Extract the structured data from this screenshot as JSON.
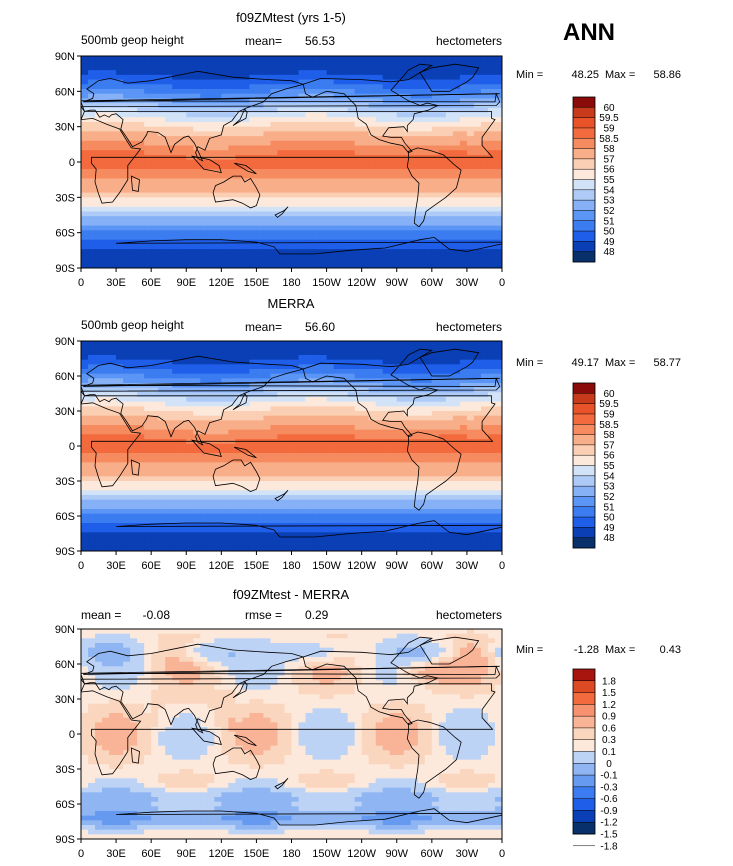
{
  "season": "ANN",
  "tick_labels": {
    "lat": [
      "90N",
      "60N",
      "30N",
      "0",
      "30S",
      "60S",
      "90S"
    ],
    "lon": [
      "0",
      "30E",
      "60E",
      "90E",
      "120E",
      "150E",
      "180",
      "150W",
      "120W",
      "90W",
      "60W",
      "30W",
      "0"
    ]
  },
  "palette": {
    "full": [
      "#08306b",
      "#0a3fb5",
      "#1f5ee8",
      "#3b7cf0",
      "#5b95f5",
      "#86b1f7",
      "#aecbf7",
      "#d3e3f7",
      "#fde9dc",
      "#fbcfb3",
      "#f9ae8a",
      "#f78b60",
      "#f26a3d",
      "#e8532a",
      "#c83a1c",
      "#8b0a0a"
    ],
    "diff": [
      "#08306b",
      "#0a3fb5",
      "#1f5ee8",
      "#3b7cf0",
      "#6699f0",
      "#8fb5f2",
      "#bcd3f5",
      "#fde9dc",
      "#fbd6bf",
      "#f9b497",
      "#f6926f",
      "#f26a3d",
      "#dd4a24",
      "#a8140e"
    ]
  },
  "chart_data": [
    {
      "type": "heatmap",
      "title": "f09ZMtest (yrs 1-5)",
      "left_label": "500mb geop height",
      "stat1_label": "mean=",
      "stat1_value": "56.53",
      "units": "hectometers",
      "min_label": "Min =",
      "min_value": "48.25",
      "max_label": "Max =",
      "max_value": "58.86",
      "colorbar_levels": [
        "60",
        "59.5",
        "59",
        "58.5",
        "58",
        "57",
        "56",
        "55",
        "54",
        "53",
        "52",
        "51",
        "50",
        "49",
        "48"
      ],
      "palette": "full",
      "field": "height",
      "x_range": [
        0,
        360
      ],
      "y_range": [
        -90,
        90
      ]
    },
    {
      "type": "heatmap",
      "title": "MERRA",
      "left_label": "500mb geop height",
      "stat1_label": "mean=",
      "stat1_value": "56.60",
      "units": "hectometers",
      "min_label": "Min =",
      "min_value": "49.17",
      "max_label": "Max =",
      "max_value": "58.77",
      "colorbar_levels": [
        "60",
        "59.5",
        "59",
        "58.5",
        "58",
        "57",
        "56",
        "55",
        "54",
        "53",
        "52",
        "51",
        "50",
        "49",
        "48"
      ],
      "palette": "full",
      "field": "height",
      "x_range": [
        0,
        360
      ],
      "y_range": [
        -90,
        90
      ]
    },
    {
      "type": "heatmap",
      "title": "f09ZMtest - MERRA",
      "left_label": "mean =",
      "left_value": "-0.08",
      "stat1_label": "rmse =",
      "stat1_value": "0.29",
      "units": "hectometers",
      "min_label": "Min =",
      "min_value": "-1.28",
      "max_label": "Max =",
      "max_value": "0.43",
      "colorbar_levels": [
        "1.8",
        "1.5",
        "1.2",
        "0.9",
        "0.6",
        "0.3",
        "0.1",
        "0",
        "-0.1",
        "-0.3",
        "-0.6",
        "-0.9",
        "-1.2",
        "-1.5",
        "-1.8"
      ],
      "palette": "diff",
      "field": "diff",
      "x_range": [
        0,
        360
      ],
      "y_range": [
        -90,
        90
      ]
    }
  ]
}
